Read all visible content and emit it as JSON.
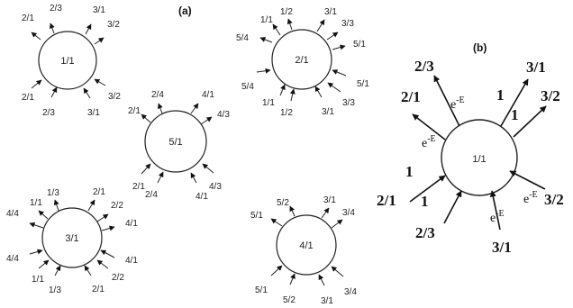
{
  "panels": {
    "a": "(a)",
    "b": "(b)"
  },
  "decay_label": "e",
  "decay_exp": "-E",
  "nodes": [
    {
      "id": "n11",
      "label": "1/1",
      "out": [
        "2/1",
        "2/3",
        "3/1",
        "3/2"
      ],
      "in": [
        "2/1",
        "2/3",
        "3/1",
        "3/2"
      ]
    },
    {
      "id": "n21",
      "label": "2/1",
      "out": [
        "1/1",
        "1/2",
        "3/1",
        "3/3",
        "5/4",
        "5/1"
      ],
      "in": [
        "5/4",
        "1/1",
        "1/2",
        "3/1",
        "3/3",
        "5/1"
      ]
    },
    {
      "id": "n51",
      "label": "5/1",
      "out": [
        "2/4",
        "4/1",
        "2/1",
        "4/3"
      ],
      "in": [
        "2/1",
        "2/4",
        "4/1",
        "4/3"
      ]
    },
    {
      "id": "n31",
      "label": "3/1",
      "out": [
        "1/3",
        "2/1",
        "1/1",
        "2/2",
        "4/4",
        "4/1"
      ],
      "in": [
        "4/4",
        "4/1",
        "1/1",
        "1/3",
        "2/1",
        "2/2"
      ]
    },
    {
      "id": "n41",
      "label": "4/1",
      "out": [
        "5/2",
        "3/1",
        "5/1",
        "3/4"
      ],
      "in": [
        "5/1",
        "5/2",
        "3/1",
        "3/4"
      ]
    }
  ],
  "detail": {
    "center": "1/1",
    "out": [
      "2/3",
      "3/1",
      "2/1",
      "3/2"
    ],
    "in": [
      "2/1",
      "2/3",
      "3/1",
      "3/2"
    ],
    "weights": [
      "1",
      "1",
      "1",
      "1"
    ]
  }
}
